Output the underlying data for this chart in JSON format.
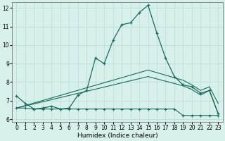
{
  "xlabel": "Humidex (Indice chaleur)",
  "bg_color": "#d8f0eb",
  "line_color": "#1a6b5a",
  "grid_color": "#b8ddd6",
  "xlim": [
    -0.5,
    23.5
  ],
  "ylim": [
    5.85,
    12.3
  ],
  "xticks": [
    0,
    1,
    2,
    3,
    4,
    5,
    6,
    7,
    8,
    9,
    10,
    11,
    12,
    13,
    14,
    15,
    16,
    17,
    18,
    19,
    20,
    21,
    22,
    23
  ],
  "yticks": [
    6,
    7,
    8,
    9,
    10,
    11,
    12
  ],
  "line_main": {
    "x": [
      0,
      1,
      2,
      3,
      4,
      5,
      6,
      7,
      8,
      9,
      10,
      11,
      12,
      13,
      14,
      15,
      16,
      17,
      18,
      19,
      20,
      21,
      22,
      23
    ],
    "y": [
      7.25,
      6.85,
      6.55,
      6.6,
      6.7,
      6.55,
      6.6,
      7.3,
      7.55,
      9.3,
      9.0,
      10.25,
      11.1,
      11.2,
      11.75,
      12.15,
      10.65,
      9.3,
      8.3,
      7.85,
      7.75,
      7.4,
      7.55,
      6.3
    ]
  },
  "line_flat": {
    "x": [
      0,
      1,
      2,
      3,
      4,
      5,
      6,
      7,
      8,
      9,
      10,
      11,
      12,
      13,
      14,
      15,
      16,
      17,
      18,
      19,
      20,
      21,
      22,
      23
    ],
    "y": [
      6.6,
      6.6,
      6.55,
      6.55,
      6.55,
      6.55,
      6.55,
      6.55,
      6.55,
      6.55,
      6.55,
      6.55,
      6.55,
      6.55,
      6.55,
      6.55,
      6.55,
      6.55,
      6.55,
      6.2,
      6.2,
      6.2,
      6.2,
      6.2
    ]
  },
  "line_diag1": {
    "x": [
      0,
      15,
      19,
      20,
      21,
      22,
      23
    ],
    "y": [
      6.6,
      8.3,
      7.8,
      7.6,
      7.3,
      7.55,
      6.3
    ]
  },
  "line_diag2": {
    "x": [
      0,
      15,
      19,
      20,
      21,
      22,
      23
    ],
    "y": [
      6.6,
      8.65,
      8.1,
      7.85,
      7.55,
      7.75,
      6.85
    ]
  }
}
